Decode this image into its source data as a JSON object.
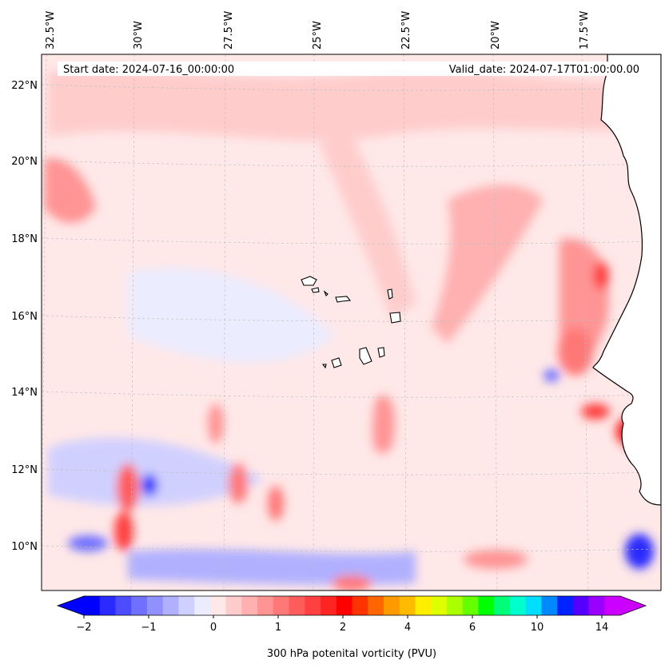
{
  "map": {
    "start_date": "Start date: 2024-07-16_00:00:00",
    "valid_date": "Valid_date: 2024-07-17T01:00:00.00",
    "lon_labels": [
      "32.5°W",
      "30°W",
      "27.5°W",
      "25°W",
      "22.5°W",
      "20°W",
      "17.5°W"
    ],
    "lat_labels": [
      "22°N",
      "20°N",
      "18°N",
      "16°N",
      "14°N",
      "12°N",
      "10°N"
    ],
    "land_color": "#ffffff",
    "coast_color": "#000000"
  },
  "colorbar": {
    "label": "300 hPa potenital vorticity (PVU)",
    "tick_labels": [
      "−2",
      "−1",
      "0",
      "1",
      "2",
      "4",
      "6",
      "10",
      "14"
    ],
    "colors": [
      "#0000ff",
      "#2a2aff",
      "#4d4dff",
      "#7070ff",
      "#9090ff",
      "#b0b0ff",
      "#d0d0ff",
      "#ececff",
      "#ffe8e8",
      "#ffcccc",
      "#ffb0b0",
      "#ff9494",
      "#ff7878",
      "#ff5c5c",
      "#ff4040",
      "#ff2424",
      "#ff0000",
      "#ff3300",
      "#ff6600",
      "#ff9900",
      "#ffbb00",
      "#ffee00",
      "#ddff00",
      "#aaff00",
      "#66ff00",
      "#00ff00",
      "#00ff77",
      "#00ffcc",
      "#00ddff",
      "#0088ff",
      "#0022ff",
      "#5500ff",
      "#9900ff",
      "#cc00ff"
    ]
  }
}
